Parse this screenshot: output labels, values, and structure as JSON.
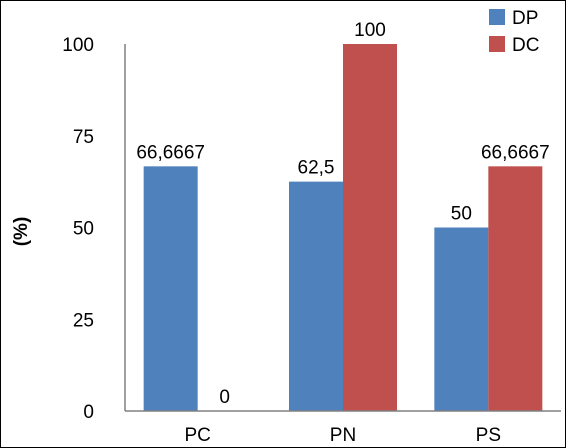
{
  "chart_data": {
    "type": "bar",
    "categories": [
      "PC",
      "PN",
      "PS"
    ],
    "series": [
      {
        "name": "DP",
        "values": [
          66.6667,
          62.5,
          50
        ],
        "labels": [
          "66,6667",
          "62,5",
          "50"
        ],
        "color": "#4F81BD"
      },
      {
        "name": "DC",
        "values": [
          0,
          100,
          66.6667
        ],
        "labels": [
          "0",
          "100",
          "66,6667"
        ],
        "color": "#C0504D"
      }
    ],
    "ylabel": "(%)",
    "ylim": [
      0,
      100
    ],
    "yticks": [
      0,
      25,
      50,
      75,
      100
    ],
    "grid": false,
    "legend": "top-right"
  }
}
